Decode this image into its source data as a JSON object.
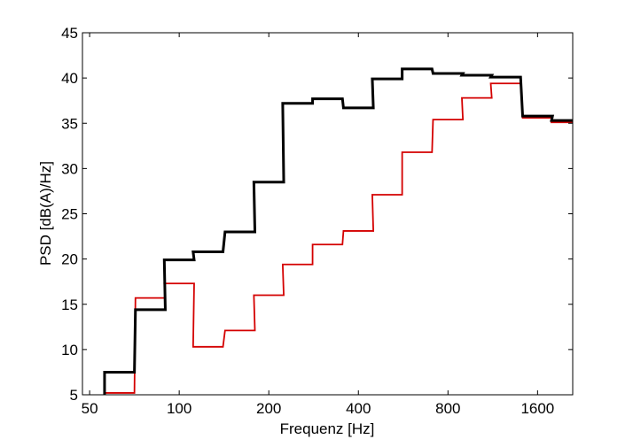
{
  "chart_data": {
    "type": "line",
    "step": true,
    "title": "",
    "xlabel": "Frequenz [Hz]",
    "ylabel": "PSD [dB(A)/Hz]",
    "xscale": "log",
    "xlim": [
      47.3,
      2100
    ],
    "ylim": [
      5,
      45
    ],
    "xticks": [
      50,
      100,
      200,
      400,
      800,
      1600
    ],
    "xtick_labels": [
      "50",
      "100",
      "200",
      "400",
      "800",
      "1600"
    ],
    "yticks": [
      5,
      10,
      15,
      20,
      25,
      30,
      35,
      40,
      45
    ],
    "ytick_labels": [
      "5",
      "10",
      "15",
      "20",
      "25",
      "30",
      "35",
      "40",
      "45"
    ],
    "grid": false,
    "bands_hz": [
      63,
      80,
      100,
      125,
      160,
      200,
      250,
      315,
      400,
      500,
      630,
      800,
      1000,
      1250,
      1600,
      2000
    ],
    "series": [
      {
        "name": "black",
        "color": "#000000",
        "values": [
          7.5,
          14.4,
          19.9,
          20.8,
          23.0,
          28.5,
          37.2,
          37.7,
          36.7,
          39.9,
          41.0,
          40.5,
          40.3,
          40.1,
          35.8,
          35.3
        ]
      },
      {
        "name": "red",
        "color": "#d40000",
        "values": [
          5.2,
          15.7,
          17.3,
          10.3,
          12.1,
          16.0,
          19.4,
          21.6,
          23.1,
          27.1,
          31.8,
          35.4,
          37.8,
          39.4,
          35.6,
          35.1
        ]
      }
    ]
  }
}
